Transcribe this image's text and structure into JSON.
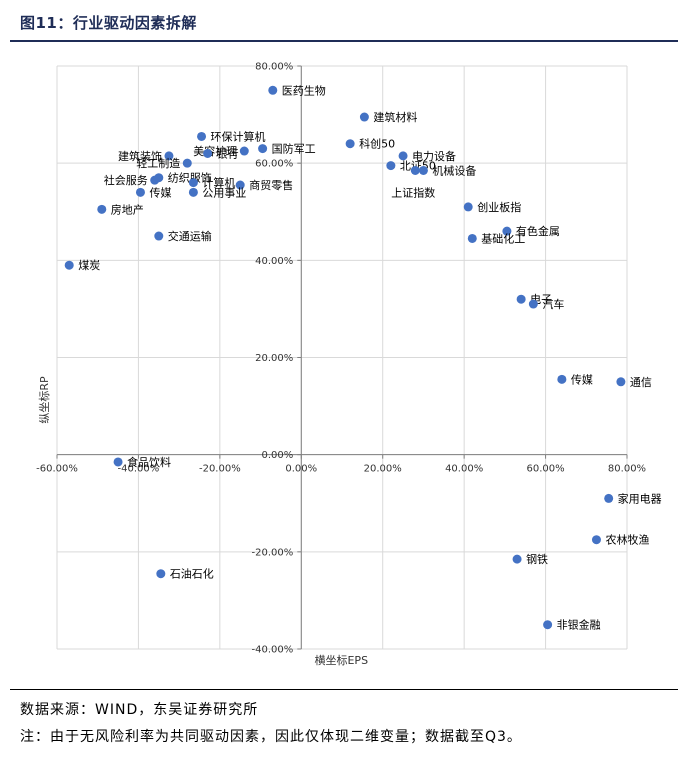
{
  "header": {
    "title": "图11：行业驱动因素拆解"
  },
  "footer": {
    "source": "数据来源：WIND，东吴证券研究所",
    "note": "注：由于无风险利率为共同驱动因素，因此仅体现二维变量；数据截至Q3。"
  },
  "colors": {
    "point": "#4472c4",
    "grid": "#d9d9d9",
    "axis": "#7f7f7f",
    "title": "#1f2d57"
  },
  "chart_data": {
    "type": "scatter",
    "xlabel": "横坐标EPS",
    "ylabel": "纵坐标RP",
    "xlim": [
      -60,
      80
    ],
    "ylim": [
      -40,
      80
    ],
    "x_ticks": [
      -60,
      -40,
      -20,
      0,
      20,
      40,
      60,
      80
    ],
    "x_tick_labels": [
      "-60.00%",
      "-40.00%",
      "-20.00%",
      "0.00%",
      "20.00%",
      "40.00%",
      "60.00%",
      "80.00%"
    ],
    "y_ticks": [
      -40,
      -20,
      0,
      20,
      40,
      60,
      80
    ],
    "y_tick_labels": [
      "-40.00%",
      "-20.00%",
      "0.00%",
      "20.00%",
      "40.00%",
      "60.00%",
      "80.00%"
    ],
    "grid": true,
    "points": [
      {
        "label": "医药生物",
        "x": -7,
        "y": 75,
        "label_pos": "right"
      },
      {
        "label": "建筑材料",
        "x": 15.5,
        "y": 69.5,
        "label_pos": "right"
      },
      {
        "label": "科创50",
        "x": 12,
        "y": 64,
        "label_pos": "right"
      },
      {
        "label": "电力设备",
        "x": 25,
        "y": 61.5,
        "label_pos": "right"
      },
      {
        "label": "北证50",
        "x": 22,
        "y": 59.5,
        "label_pos": "right"
      },
      {
        "label": "机械设备",
        "x": 30,
        "y": 58.5,
        "label_pos": "right"
      },
      {
        "label": "上证指数",
        "x": 28,
        "y": 58.5,
        "label_pos": "below"
      },
      {
        "label": "环保计算机",
        "x": -24.5,
        "y": 65.5,
        "label_pos": "right"
      },
      {
        "label": "国防军工",
        "x": -9.5,
        "y": 63,
        "label_pos": "right"
      },
      {
        "label": "美容护理",
        "x": -14,
        "y": 62.5,
        "label_pos": "left"
      },
      {
        "label": "建筑装饰",
        "x": -32.5,
        "y": 61.5,
        "label_pos": "left"
      },
      {
        "label": "银行",
        "x": -23,
        "y": 62,
        "label_pos": "right"
      },
      {
        "label": "轻工制造",
        "x": -28,
        "y": 60,
        "label_pos": "left"
      },
      {
        "label": "纺织服饰",
        "x": -35,
        "y": 57,
        "label_pos": "right"
      },
      {
        "label": "社会服务",
        "x": -36,
        "y": 56.5,
        "label_pos": "left"
      },
      {
        "label": "计算机",
        "x": -26.5,
        "y": 56,
        "label_pos": "right"
      },
      {
        "label": "商贸零售",
        "x": -15,
        "y": 55.5,
        "label_pos": "right"
      },
      {
        "label": "公用事业",
        "x": -26.5,
        "y": 54,
        "label_pos": "right"
      },
      {
        "label": "传媒",
        "x": -39.5,
        "y": 54,
        "label_pos": "right"
      },
      {
        "label": "房地产",
        "x": -49,
        "y": 50.5,
        "label_pos": "right"
      },
      {
        "label": "交通运输",
        "x": -35,
        "y": 45,
        "label_pos": "right"
      },
      {
        "label": "煤炭",
        "x": -57,
        "y": 39,
        "label_pos": "right"
      },
      {
        "label": "创业板指",
        "x": 41,
        "y": 51,
        "label_pos": "right"
      },
      {
        "label": "有色金属",
        "x": 50.5,
        "y": 46,
        "label_pos": "right"
      },
      {
        "label": "基础化工",
        "x": 42,
        "y": 44.5,
        "label_pos": "right"
      },
      {
        "label": "电子",
        "x": 54,
        "y": 32,
        "label_pos": "right"
      },
      {
        "label": "汽车",
        "x": 57,
        "y": 31,
        "label_pos": "right"
      },
      {
        "label": "传媒",
        "x": 64,
        "y": 15.5,
        "label_pos": "right"
      },
      {
        "label": "通信",
        "x": 78.5,
        "y": 15,
        "label_pos": "right"
      },
      {
        "label": "食品饮料",
        "x": -45,
        "y": -1.5,
        "label_pos": "right"
      },
      {
        "label": "家用电器",
        "x": 75.5,
        "y": -9,
        "label_pos": "right"
      },
      {
        "label": "农林牧渔",
        "x": 72.5,
        "y": -17.5,
        "label_pos": "right"
      },
      {
        "label": "钢铁",
        "x": 53,
        "y": -21.5,
        "label_pos": "right"
      },
      {
        "label": "石油石化",
        "x": -34.5,
        "y": -24.5,
        "label_pos": "right"
      },
      {
        "label": "非银金融",
        "x": 60.5,
        "y": -35,
        "label_pos": "right"
      }
    ]
  }
}
